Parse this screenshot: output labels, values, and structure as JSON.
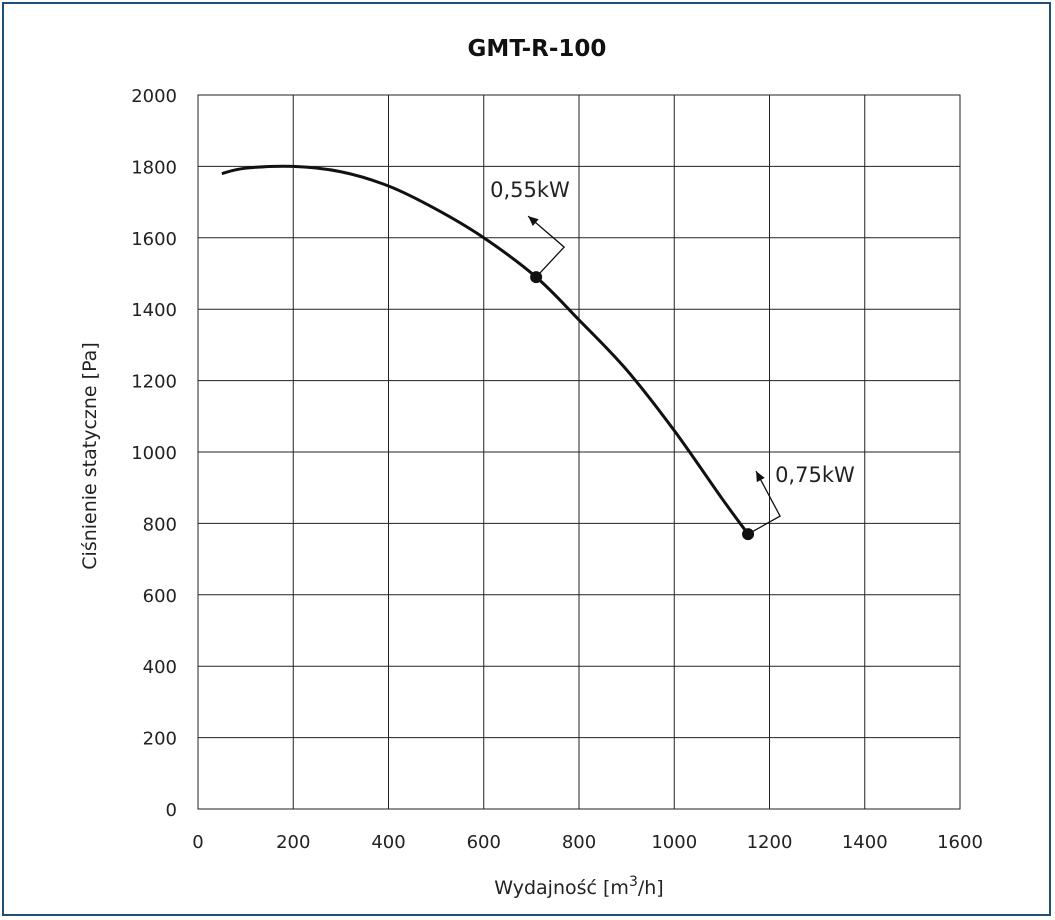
{
  "chart_data": {
    "type": "line",
    "title": "GMT-R-100",
    "xlabel": "Wydajność [m",
    "xlabel_sup": "3",
    "xlabel_tail": "/h]",
    "ylabel": "Ciśnienie statyczne [Pa]",
    "xlim": [
      0,
      1600
    ],
    "ylim": [
      0,
      2000
    ],
    "x_ticks": [
      "0",
      "200",
      "400",
      "600",
      "800",
      "1000",
      "1200",
      "1400",
      "1600"
    ],
    "y_ticks": [
      "0",
      "200",
      "400",
      "600",
      "800",
      "1000",
      "1200",
      "1400",
      "1600",
      "1800",
      "2000"
    ],
    "grid": true,
    "series": [
      {
        "x": [
          50,
          100,
          200,
          300,
          400,
          500,
          600,
          710,
          800,
          900,
          1000,
          1100,
          1155
        ],
        "y": [
          1780,
          1795,
          1800,
          1785,
          1745,
          1680,
          1600,
          1490,
          1370,
          1230,
          1060,
          870,
          770
        ]
      }
    ],
    "points": [
      {
        "x": 710,
        "y": 1490,
        "label": "0,55kW"
      },
      {
        "x": 1155,
        "y": 770,
        "label": "0,75kW"
      }
    ]
  }
}
